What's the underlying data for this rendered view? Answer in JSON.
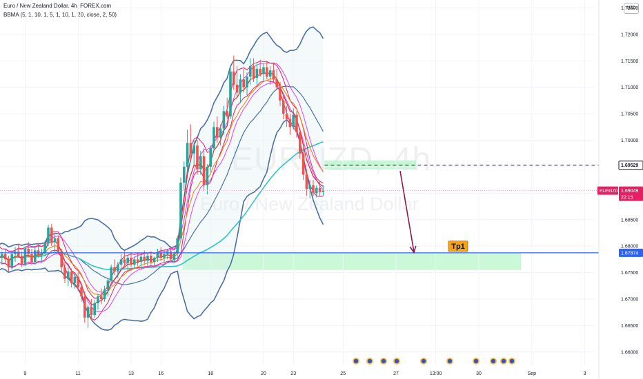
{
  "header": {
    "title": "Euro / New Zealand Dollar, 4h, FOREX.com",
    "indicator": "BBMA (5, 1, 10, 1, 5, 1, 10, 1, 20, close, 2, 50)"
  },
  "watermark": {
    "symbol": "EURNZD, 4h",
    "name": "Euro / New Zealand Dollar"
  },
  "currency_tag": "NZD",
  "colors": {
    "bull": "#26a69a",
    "bear": "#ef5350",
    "bb": "#4a6fa5",
    "ma50": "#2ec4c4",
    "lwma5": "#e91e63",
    "lwma10": "#e040fb",
    "ema5": "#d32f2f",
    "ema10": "#f57c00",
    "tp_line": "#2962ff",
    "arrow": "#8b1a4a",
    "zone": "#b9f6ca",
    "tp_tag": "#f7a21b",
    "symbol_tag": "#e91e63",
    "current_line": "#f48fb1"
  },
  "chart_data": {
    "type": "candlestick",
    "title": "Euro / New Zealand Dollar, 4h, FOREX.com",
    "ylim": [
      1.6575,
      1.7265
    ],
    "y_ticks": [
      "1.72500",
      "1.72000",
      "1.71500",
      "1.71000",
      "1.70500",
      "1.70000",
      "1.69500",
      "1.69000",
      "1.68500",
      "1.68000",
      "1.67500",
      "1.67000",
      "1.66500",
      "1.66000"
    ],
    "x_ticks": [
      {
        "label": "9",
        "bar": 8
      },
      {
        "label": "11",
        "bar": 24
      },
      {
        "label": "13",
        "bar": 40
      },
      {
        "label": "16",
        "bar": 49
      },
      {
        "label": "18",
        "bar": 64
      },
      {
        "label": "20",
        "bar": 80
      },
      {
        "label": "23",
        "bar": 89
      },
      {
        "label": "25",
        "bar": 104
      },
      {
        "label": "27",
        "bar": 120
      },
      {
        "label": "13:00",
        "bar": 132
      },
      {
        "label": "30",
        "bar": 145
      },
      {
        "label": "Sep",
        "bar": 161
      },
      {
        "label": "3",
        "bar": 177
      }
    ],
    "candles": [
      [
        1.6789,
        1.68,
        1.677,
        1.6778
      ],
      [
        1.6778,
        1.679,
        1.6765,
        1.6785
      ],
      [
        1.6785,
        1.6795,
        1.6768,
        1.6775
      ],
      [
        1.6775,
        1.6782,
        1.6752,
        1.676
      ],
      [
        1.676,
        1.679,
        1.6755,
        1.6785
      ],
      [
        1.6785,
        1.6798,
        1.677,
        1.679
      ],
      [
        1.679,
        1.6805,
        1.6778,
        1.6782
      ],
      [
        1.6782,
        1.679,
        1.676,
        1.6765
      ],
      [
        1.6765,
        1.68,
        1.6762,
        1.6795
      ],
      [
        1.6795,
        1.6808,
        1.678,
        1.6785
      ],
      [
        1.6785,
        1.6795,
        1.6765,
        1.677
      ],
      [
        1.677,
        1.6798,
        1.6765,
        1.6792
      ],
      [
        1.6792,
        1.6806,
        1.6778,
        1.6783
      ],
      [
        1.6783,
        1.6795,
        1.677,
        1.6788
      ],
      [
        1.6788,
        1.681,
        1.6782,
        1.6805
      ],
      [
        1.6805,
        1.684,
        1.68,
        1.6835
      ],
      [
        1.6835,
        1.6842,
        1.68,
        1.6808
      ],
      [
        1.6808,
        1.6822,
        1.679,
        1.6815
      ],
      [
        1.6815,
        1.682,
        1.6785,
        1.679
      ],
      [
        1.679,
        1.6795,
        1.6752,
        1.676
      ],
      [
        1.676,
        1.6772,
        1.673,
        1.6738
      ],
      [
        1.6738,
        1.676,
        1.6725,
        1.6752
      ],
      [
        1.6752,
        1.6758,
        1.6722,
        1.673
      ],
      [
        1.673,
        1.6748,
        1.672,
        1.6742
      ],
      [
        1.6742,
        1.675,
        1.6715,
        1.6722
      ],
      [
        1.6722,
        1.673,
        1.6695,
        1.6705
      ],
      [
        1.6705,
        1.6715,
        1.6655,
        1.6665
      ],
      [
        1.6665,
        1.669,
        1.6645,
        1.6685
      ],
      [
        1.6685,
        1.67,
        1.666,
        1.667
      ],
      [
        1.667,
        1.6698,
        1.6665,
        1.6692
      ],
      [
        1.6692,
        1.671,
        1.668,
        1.6705
      ],
      [
        1.6705,
        1.672,
        1.669,
        1.67
      ],
      [
        1.67,
        1.6725,
        1.6695,
        1.6718
      ],
      [
        1.6718,
        1.674,
        1.6705,
        1.6735
      ],
      [
        1.6735,
        1.6765,
        1.673,
        1.676
      ],
      [
        1.676,
        1.6775,
        1.6745,
        1.6752
      ],
      [
        1.6752,
        1.677,
        1.674,
        1.6765
      ],
      [
        1.6765,
        1.6785,
        1.6755,
        1.6775
      ],
      [
        1.6775,
        1.679,
        1.676,
        1.6768
      ],
      [
        1.6768,
        1.6782,
        1.6755,
        1.6778
      ],
      [
        1.6778,
        1.6788,
        1.676,
        1.6765
      ],
      [
        1.6765,
        1.678,
        1.6758,
        1.6775
      ],
      [
        1.6775,
        1.6788,
        1.6762,
        1.677
      ],
      [
        1.677,
        1.6785,
        1.6758,
        1.678
      ],
      [
        1.678,
        1.6792,
        1.6765,
        1.6772
      ],
      [
        1.6772,
        1.6786,
        1.6762,
        1.6782
      ],
      [
        1.6782,
        1.679,
        1.6765,
        1.677
      ],
      [
        1.677,
        1.678,
        1.676,
        1.6778
      ],
      [
        1.6778,
        1.6795,
        1.677,
        1.6788
      ],
      [
        1.6788,
        1.6798,
        1.6772,
        1.6778
      ],
      [
        1.6778,
        1.6792,
        1.677,
        1.6785
      ],
      [
        1.6785,
        1.6795,
        1.6775,
        1.679
      ],
      [
        1.679,
        1.68,
        1.677,
        1.6775
      ],
      [
        1.6775,
        1.679,
        1.6768,
        1.6786
      ],
      [
        1.6786,
        1.682,
        1.678,
        1.6815
      ],
      [
        1.6815,
        1.693,
        1.681,
        1.692
      ],
      [
        1.692,
        1.696,
        1.6905,
        1.695
      ],
      [
        1.695,
        1.702,
        1.6935,
        1.6995
      ],
      [
        1.6995,
        1.703,
        1.696,
        1.6975
      ],
      [
        1.6975,
        1.7,
        1.695,
        1.699
      ],
      [
        1.699,
        1.7,
        1.6935,
        1.6945
      ],
      [
        1.6945,
        1.698,
        1.6935,
        1.697
      ],
      [
        1.697,
        1.6985,
        1.6905,
        1.6915
      ],
      [
        1.6915,
        1.6955,
        1.6898,
        1.695
      ],
      [
        1.695,
        1.699,
        1.694,
        1.6985
      ],
      [
        1.6985,
        1.7035,
        1.698,
        1.7025
      ],
      [
        1.7025,
        1.7045,
        1.6995,
        1.7005
      ],
      [
        1.7005,
        1.703,
        1.699,
        1.7022
      ],
      [
        1.7022,
        1.7065,
        1.701,
        1.7055
      ],
      [
        1.7055,
        1.708,
        1.704,
        1.7045
      ],
      [
        1.7045,
        1.714,
        1.704,
        1.713
      ],
      [
        1.713,
        1.716,
        1.7095,
        1.7105
      ],
      [
        1.7105,
        1.714,
        1.708,
        1.709
      ],
      [
        1.709,
        1.7125,
        1.707,
        1.7115
      ],
      [
        1.7115,
        1.7135,
        1.709,
        1.71
      ],
      [
        1.71,
        1.7128,
        1.7085,
        1.712
      ],
      [
        1.712,
        1.7155,
        1.7105,
        1.714
      ],
      [
        1.714,
        1.7155,
        1.711,
        1.7118
      ],
      [
        1.7118,
        1.7145,
        1.7105,
        1.7135
      ],
      [
        1.7135,
        1.7152,
        1.712,
        1.7125
      ],
      [
        1.7125,
        1.7145,
        1.711,
        1.7138
      ],
      [
        1.7138,
        1.715,
        1.7115,
        1.712
      ],
      [
        1.712,
        1.714,
        1.7105,
        1.7132
      ],
      [
        1.7132,
        1.7145,
        1.711,
        1.7115
      ],
      [
        1.7115,
        1.7135,
        1.7095,
        1.71
      ],
      [
        1.71,
        1.711,
        1.7065,
        1.7075
      ],
      [
        1.7075,
        1.709,
        1.704,
        1.705
      ],
      [
        1.705,
        1.7065,
        1.7025,
        1.704
      ],
      [
        1.704,
        1.705,
        1.701,
        1.7025
      ],
      [
        1.7025,
        1.706,
        1.702,
        1.7048
      ],
      [
        1.7048,
        1.7055,
        1.7005,
        1.7015
      ],
      [
        1.7015,
        1.702,
        1.6965,
        1.6975
      ],
      [
        1.6975,
        1.6985,
        1.6925,
        1.6935
      ],
      [
        1.6935,
        1.6945,
        1.6895,
        1.6908
      ],
      [
        1.6908,
        1.6925,
        1.689,
        1.6915
      ],
      [
        1.6915,
        1.6925,
        1.6895,
        1.69
      ],
      [
        1.69,
        1.6915,
        1.6892,
        1.691
      ],
      [
        1.691,
        1.6922,
        1.6895,
        1.6902
      ],
      [
        1.6902,
        1.6915,
        1.6895,
        1.6905
      ]
    ],
    "annotations": {
      "entry_level": 1.69529,
      "entry_zone": [
        1.6945,
        1.6962
      ],
      "tp_level": 1.67874,
      "tp_zone": [
        1.6755,
        1.6787
      ],
      "tp_label": "Tp1",
      "current_price": 1.69049,
      "arrow_from": 1.6942,
      "arrow_to": 1.6788
    },
    "price_tags": {
      "entry": "1.69529",
      "current": "1.69049",
      "timer": "22:15",
      "symbol": "EURNZD",
      "tp": "1.67874"
    },
    "event_markers": 10
  }
}
